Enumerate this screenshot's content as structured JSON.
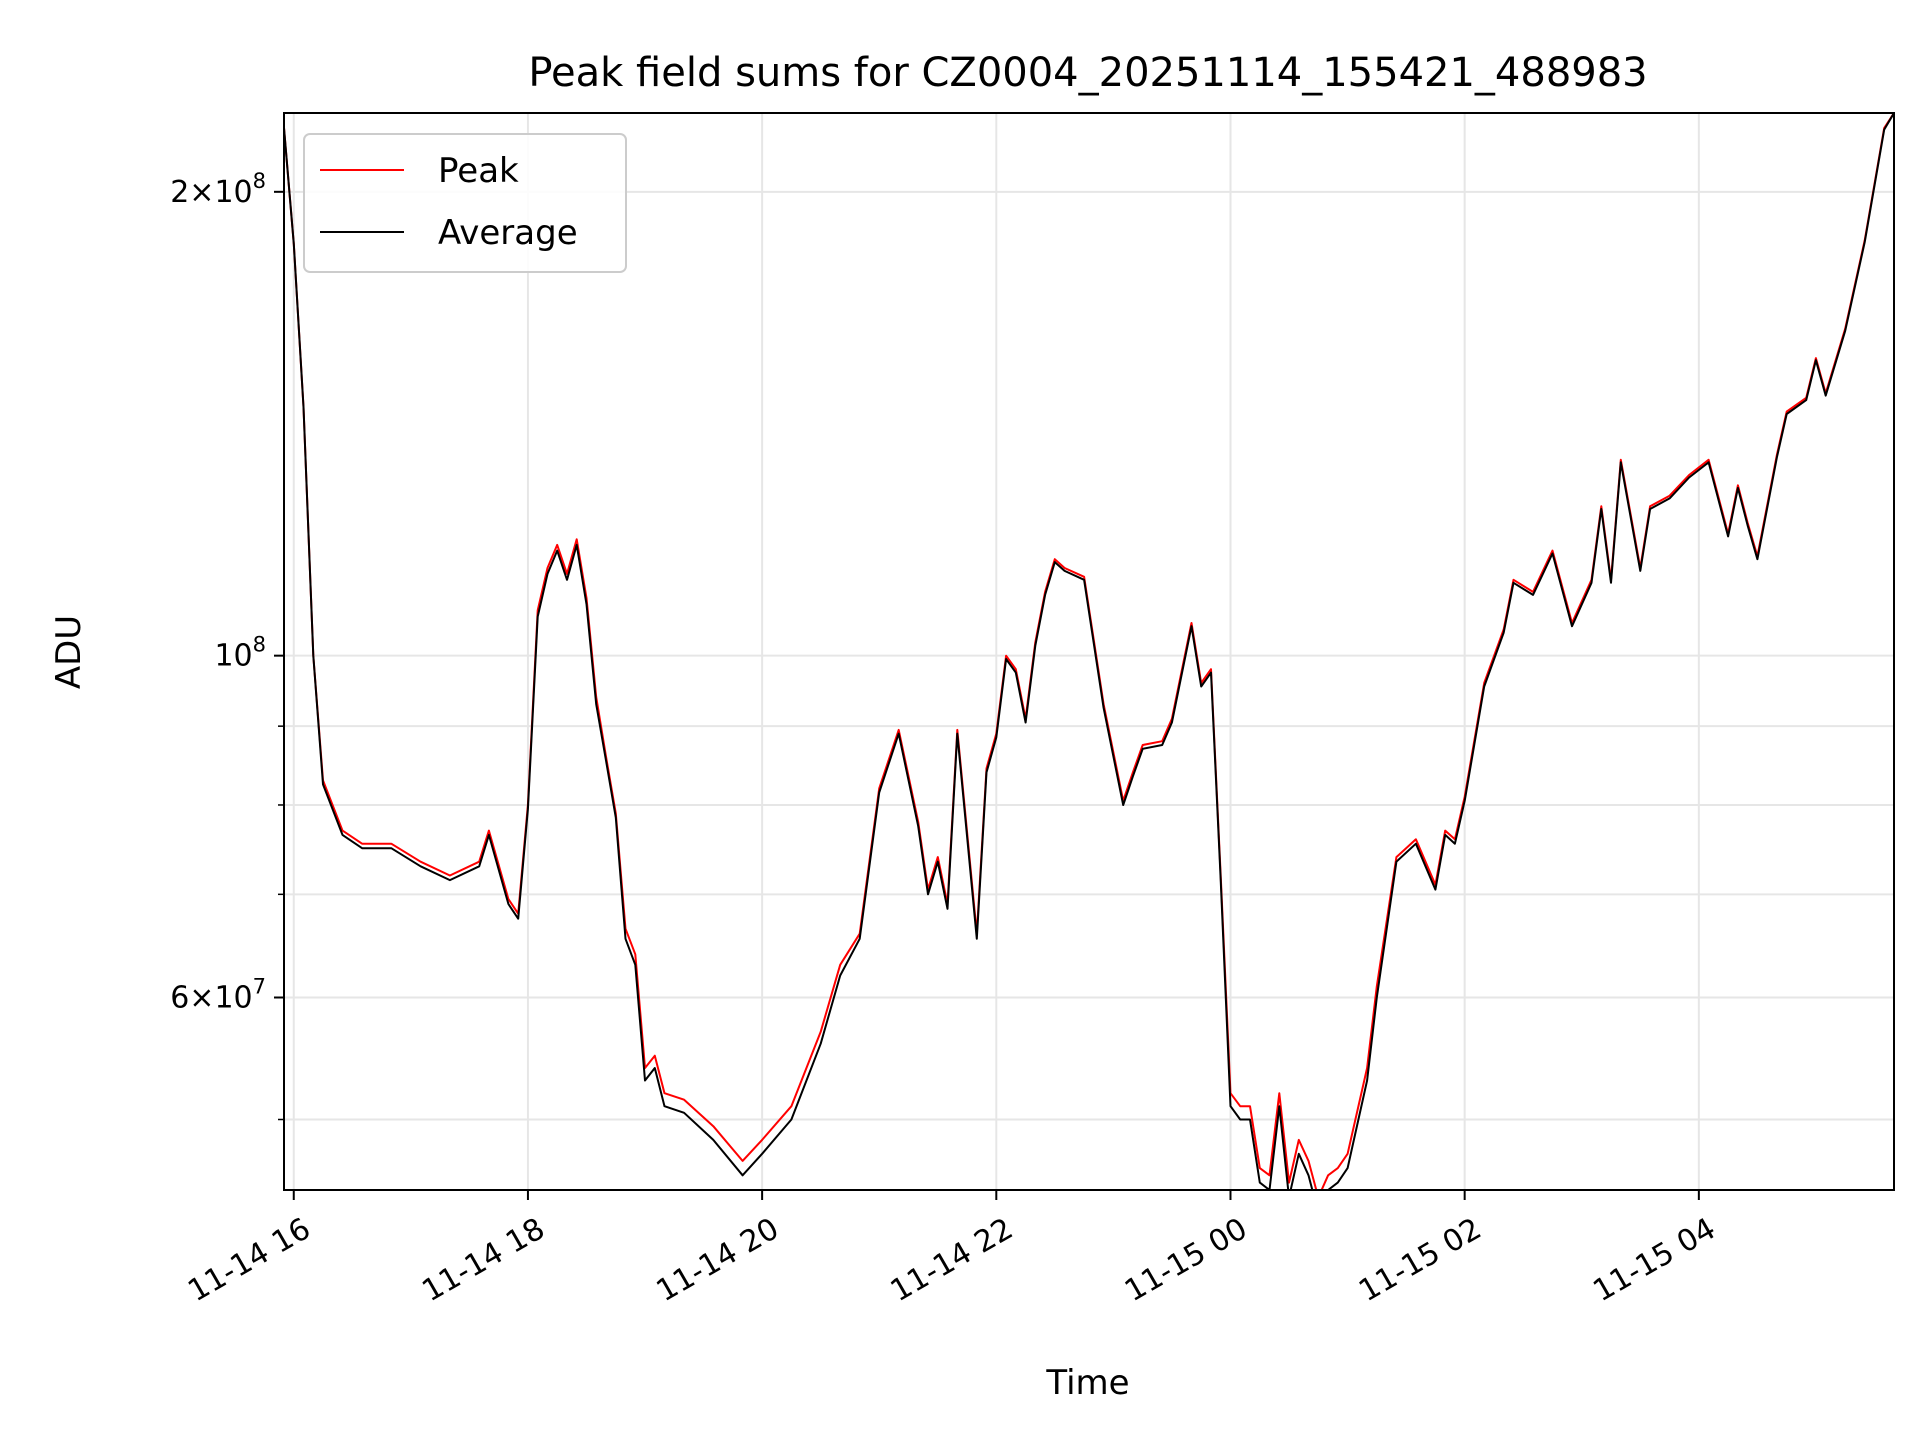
{
  "chart_data": {
    "type": "line",
    "title": "Peak field sums for CZ0004_20251114_155421_488983",
    "xlabel": "Time",
    "ylabel": "ADU",
    "yscale": "log",
    "xlim": [
      "2025-11-14 15:55",
      "2025-11-15 05:40"
    ],
    "ylim": [
      45000000,
      225000000
    ],
    "grid": true,
    "legend": "upper-left",
    "colors": {
      "Peak": "#ff0000",
      "Average": "#000000",
      "grid": "#e6e6e6"
    },
    "x_ticks": [
      "11-14 16",
      "11-14 18",
      "11-14 20",
      "11-14 22",
      "11-15 00",
      "11-15 02",
      "11-15 04"
    ],
    "y_ticks": [
      {
        "value": 200000000,
        "base": "2×10",
        "exp": "8"
      },
      {
        "value": 100000000,
        "base": "10",
        "exp": "8"
      },
      {
        "value": 60000000,
        "base": "6×10",
        "exp": "7"
      }
    ],
    "y_minor_ticks": [
      50000000,
      70000000,
      80000000,
      90000000
    ],
    "x": [
      "2025-11-14 15:55",
      "2025-11-14 16:00",
      "2025-11-14 16:05",
      "2025-11-14 16:10",
      "2025-11-14 16:15",
      "2025-11-14 16:25",
      "2025-11-14 16:35",
      "2025-11-14 16:50",
      "2025-11-14 17:05",
      "2025-11-14 17:20",
      "2025-11-14 17:35",
      "2025-11-14 17:40",
      "2025-11-14 17:50",
      "2025-11-14 17:55",
      "2025-11-14 18:00",
      "2025-11-14 18:05",
      "2025-11-14 18:10",
      "2025-11-14 18:15",
      "2025-11-14 18:20",
      "2025-11-14 18:25",
      "2025-11-14 18:30",
      "2025-11-14 18:35",
      "2025-11-14 18:40",
      "2025-11-14 18:45",
      "2025-11-14 18:50",
      "2025-11-14 18:55",
      "2025-11-14 19:00",
      "2025-11-14 19:05",
      "2025-11-14 19:10",
      "2025-11-14 19:20",
      "2025-11-14 19:35",
      "2025-11-14 19:50",
      "2025-11-14 20:00",
      "2025-11-14 20:15",
      "2025-11-14 20:30",
      "2025-11-14 20:40",
      "2025-11-14 20:50",
      "2025-11-14 21:00",
      "2025-11-14 21:10",
      "2025-11-14 21:20",
      "2025-11-14 21:25",
      "2025-11-14 21:30",
      "2025-11-14 21:35",
      "2025-11-14 21:40",
      "2025-11-14 21:50",
      "2025-11-14 21:55",
      "2025-11-14 22:00",
      "2025-11-14 22:05",
      "2025-11-14 22:10",
      "2025-11-14 22:15",
      "2025-11-14 22:20",
      "2025-11-14 22:25",
      "2025-11-14 22:30",
      "2025-11-14 22:35",
      "2025-11-14 22:45",
      "2025-11-14 22:55",
      "2025-11-14 23:05",
      "2025-11-14 23:10",
      "2025-11-14 23:15",
      "2025-11-14 23:25",
      "2025-11-14 23:30",
      "2025-11-14 23:40",
      "2025-11-14 23:45",
      "2025-11-14 23:50",
      "2025-11-14 23:55",
      "2025-11-15 00:00",
      "2025-11-15 00:05",
      "2025-11-15 00:10",
      "2025-11-15 00:15",
      "2025-11-15 00:20",
      "2025-11-15 00:25",
      "2025-11-15 00:30",
      "2025-11-15 00:35",
      "2025-11-15 00:40",
      "2025-11-15 00:45",
      "2025-11-15 00:50",
      "2025-11-15 00:55",
      "2025-11-15 01:00",
      "2025-11-15 01:10",
      "2025-11-15 01:15",
      "2025-11-15 01:25",
      "2025-11-15 01:35",
      "2025-11-15 01:45",
      "2025-11-15 01:50",
      "2025-11-15 01:55",
      "2025-11-15 02:00",
      "2025-11-15 02:10",
      "2025-11-15 02:20",
      "2025-11-15 02:25",
      "2025-11-15 02:35",
      "2025-11-15 02:45",
      "2025-11-15 02:55",
      "2025-11-15 03:05",
      "2025-11-15 03:10",
      "2025-11-15 03:15",
      "2025-11-15 03:20",
      "2025-11-15 03:30",
      "2025-11-15 03:35",
      "2025-11-15 03:45",
      "2025-11-15 03:55",
      "2025-11-15 04:05",
      "2025-11-15 04:15",
      "2025-11-15 04:20",
      "2025-11-15 04:25",
      "2025-11-15 04:30",
      "2025-11-15 04:40",
      "2025-11-15 04:45",
      "2025-11-15 04:55",
      "2025-11-15 05:00",
      "2025-11-15 05:05",
      "2025-11-15 05:15",
      "2025-11-15 05:25",
      "2025-11-15 05:35",
      "2025-11-15 05:40"
    ],
    "series": [
      {
        "name": "Peak",
        "values": [
          220000000,
          185000000,
          145000000,
          100000000,
          83000000,
          77000000,
          75500000,
          75500000,
          73500000,
          72000000,
          73500000,
          77000000,
          69500000,
          68000000,
          80000000,
          107000000,
          114000000,
          118000000,
          113000000,
          119000000,
          109000000,
          94000000,
          86000000,
          79000000,
          66500000,
          64000000,
          54000000,
          55000000,
          52000000,
          51500000,
          49500000,
          47000000,
          48500000,
          51000000,
          57000000,
          63000000,
          66000000,
          82000000,
          89500000,
          78000000,
          70500000,
          74000000,
          69000000,
          89500000,
          66000000,
          84500000,
          89000000,
          100000000,
          98000000,
          91000000,
          102000000,
          110000000,
          115500000,
          114000000,
          112500000,
          93000000,
          80500000,
          84000000,
          87500000,
          88000000,
          91000000,
          105000000,
          96000000,
          98000000,
          72000000,
          52000000,
          51000000,
          51000000,
          46500000,
          46000000,
          52000000,
          45500000,
          48500000,
          47000000,
          44500000,
          46000000,
          46500000,
          47500000,
          54000000,
          61000000,
          74000000,
          76000000,
          71000000,
          77000000,
          76000000,
          81000000,
          96000000,
          104000000,
          112000000,
          110000000,
          117000000,
          105000000,
          112000000,
          125000000,
          112000000,
          134000000,
          114000000,
          125000000,
          127000000,
          131000000,
          134000000,
          120000000,
          129000000,
          122000000,
          116000000,
          135000000,
          144000000,
          147000000,
          156000000,
          148000000,
          163000000,
          186000000,
          220000000,
          225000000
        ]
      },
      {
        "name": "Average",
        "values": [
          220000000,
          185000000,
          145000000,
          100000000,
          82500000,
          76500000,
          75000000,
          75000000,
          73000000,
          71500000,
          73000000,
          76500000,
          69000000,
          67500000,
          79500000,
          106000000,
          113000000,
          117000000,
          112000000,
          118000000,
          108000000,
          93000000,
          85500000,
          78500000,
          65500000,
          63000000,
          53000000,
          54000000,
          51000000,
          50500000,
          48500000,
          46000000,
          47500000,
          50000000,
          56000000,
          62000000,
          65500000,
          81500000,
          89000000,
          77500000,
          70000000,
          73500000,
          68500000,
          89000000,
          65500000,
          84000000,
          88500000,
          99500000,
          97500000,
          90500000,
          101500000,
          109500000,
          115000000,
          113500000,
          112000000,
          92500000,
          80000000,
          83500000,
          87000000,
          87500000,
          90500000,
          104500000,
          95500000,
          97500000,
          71500000,
          51000000,
          50000000,
          50000000,
          45500000,
          45000000,
          51000000,
          44500000,
          47500000,
          46000000,
          43500000,
          45000000,
          45500000,
          46500000,
          53000000,
          60000000,
          73500000,
          75500000,
          70500000,
          76500000,
          75500000,
          80500000,
          95500000,
          103500000,
          111500000,
          109500000,
          116500000,
          104500000,
          111500000,
          124500000,
          111500000,
          133500000,
          113500000,
          124500000,
          126500000,
          130500000,
          133500000,
          119500000,
          128500000,
          121500000,
          115500000,
          134500000,
          143500000,
          146500000,
          155500000,
          147500000,
          162500000,
          185500000,
          219500000,
          225000000
        ]
      }
    ]
  }
}
